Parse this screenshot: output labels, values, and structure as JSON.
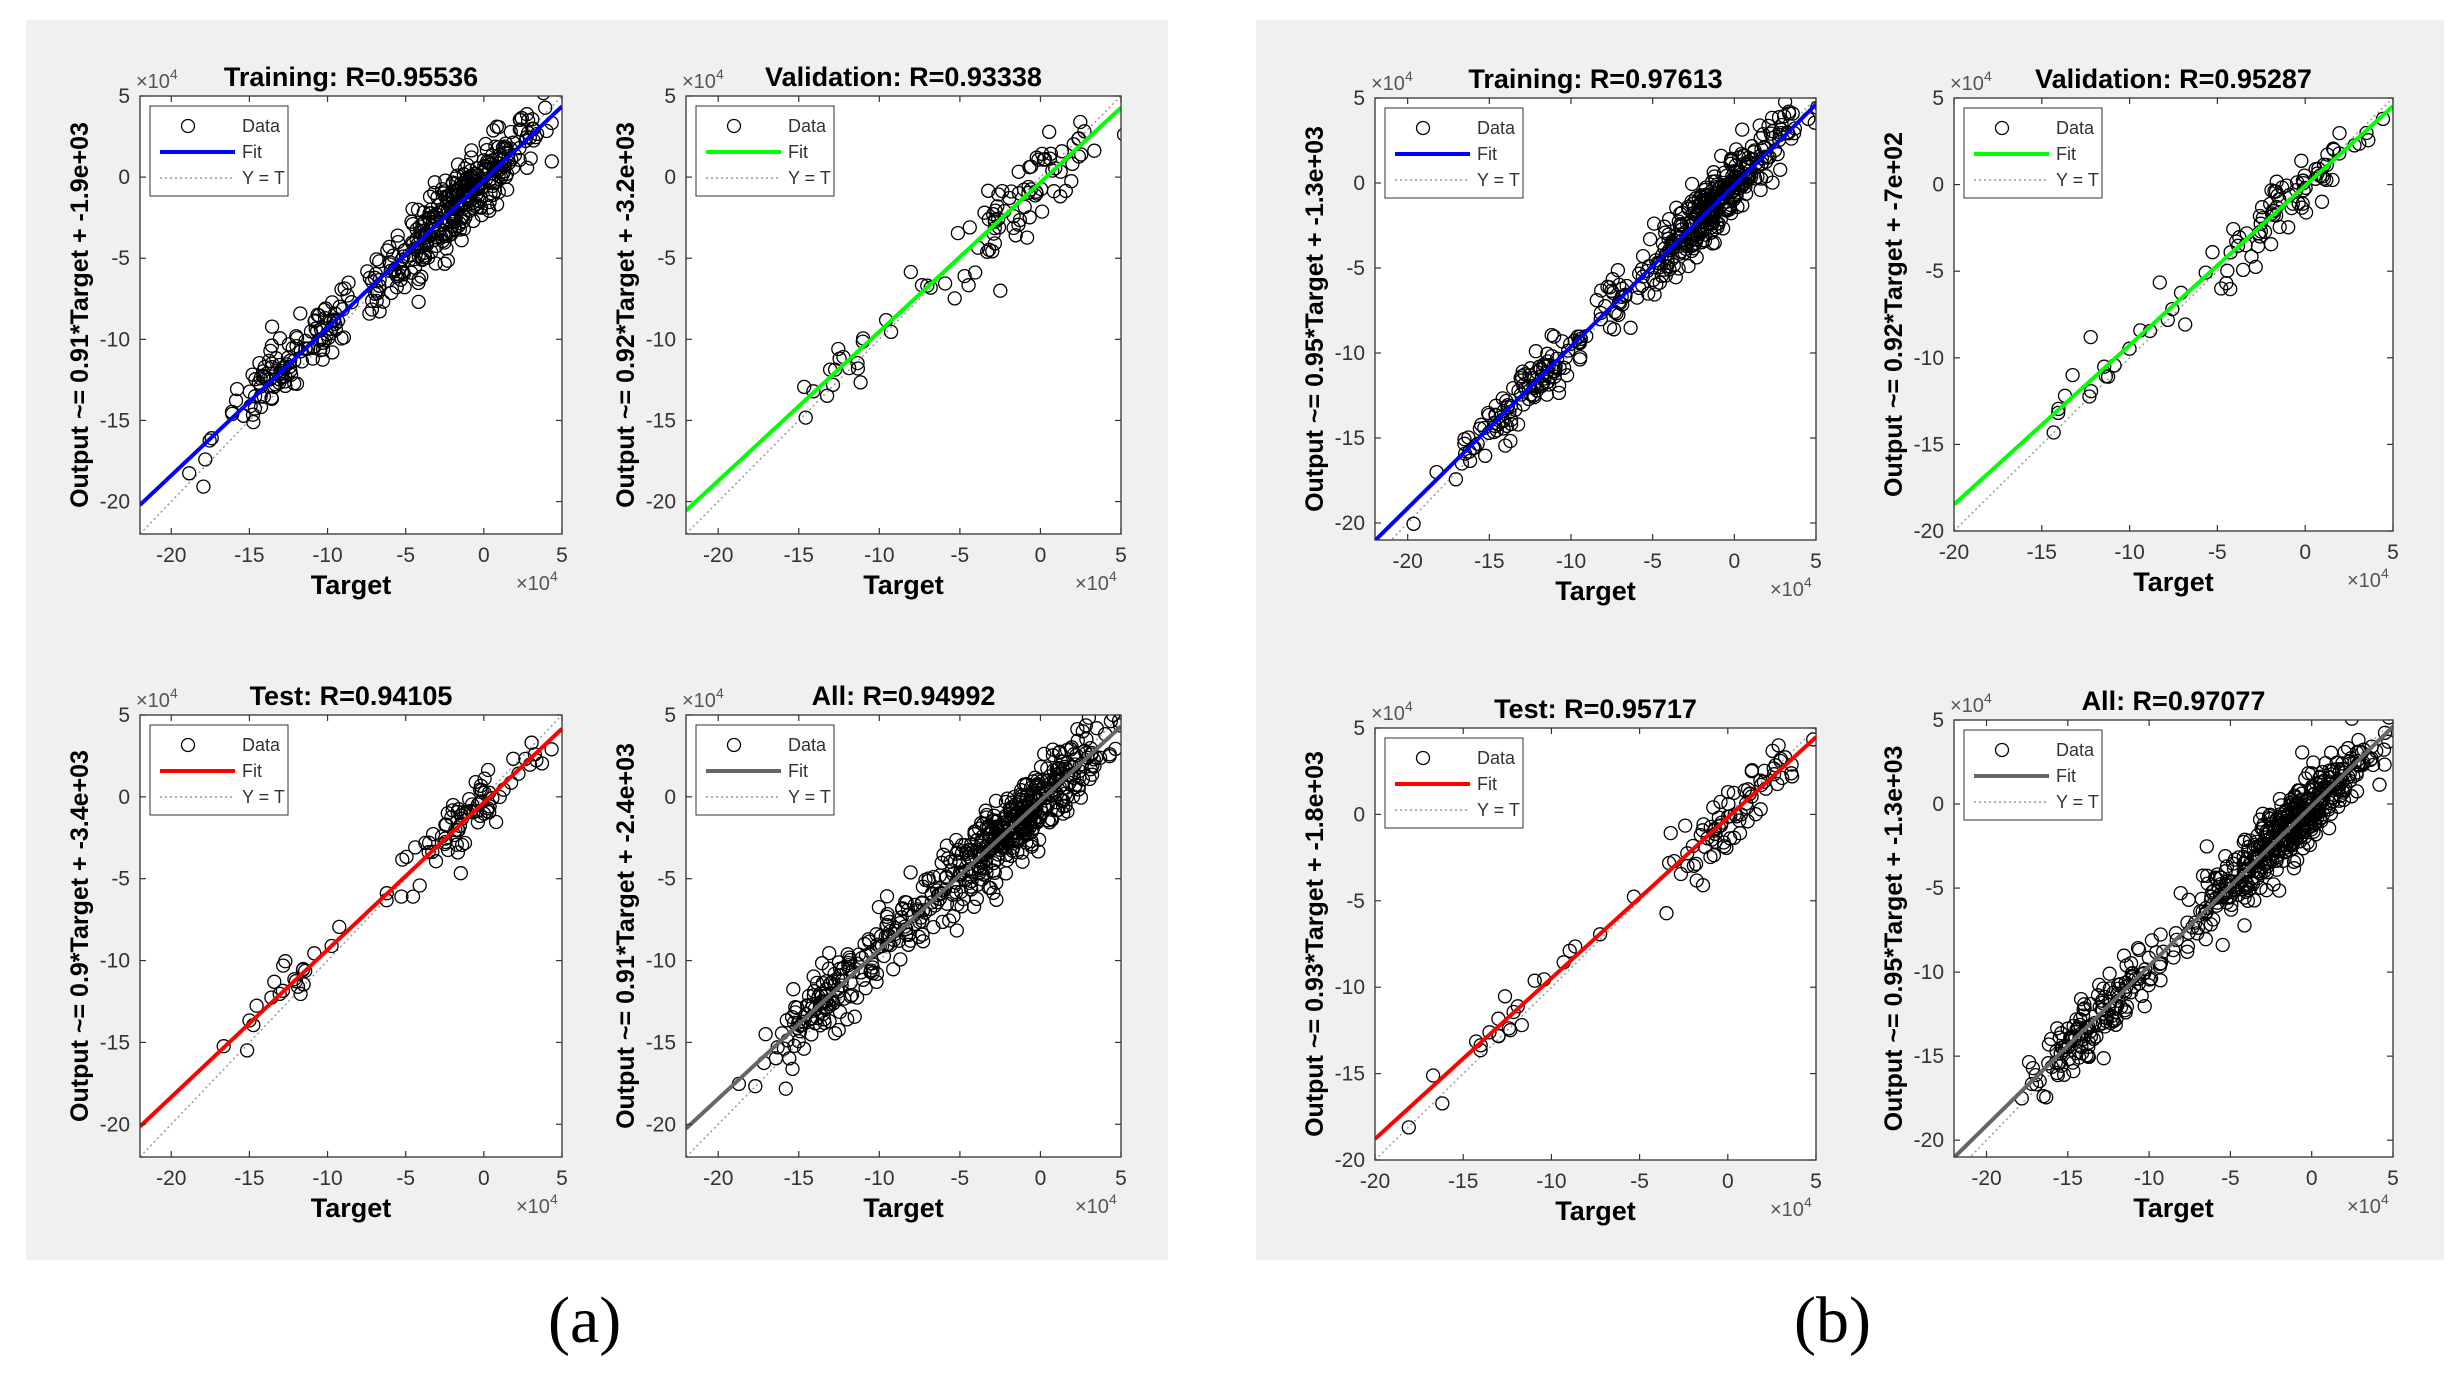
{
  "figure": {
    "captions": [
      "(a)",
      "(b)"
    ],
    "axis_exponent": "×10",
    "axis_exponent_power": "4"
  },
  "chart_data": [
    {
      "id": "a-training",
      "type": "scatter",
      "title": "Training: R=0.95536",
      "ylabel": "Output ~= 0.91*Target + -1.9e+03",
      "xlabel": "Target",
      "xlim": [
        -22,
        5
      ],
      "ylim": [
        -22,
        5
      ],
      "xticks": [
        "-20",
        "-15",
        "-10",
        "-5",
        "0",
        "5"
      ],
      "yticks": [
        "-20",
        "-15",
        "-10",
        "-5",
        "0",
        "5"
      ],
      "fit": {
        "slope": 0.91,
        "intercept": -0.19,
        "color": "#0000ff"
      },
      "legend": [
        "Data",
        "Fit",
        "Y = T"
      ],
      "clusters": [
        {
          "cx": -1.5,
          "cy": -1.5,
          "spread": 2.6,
          "n": 340
        },
        {
          "cx": -12.5,
          "cy": -11.8,
          "spread": 2.4,
          "n": 110
        },
        {
          "cx": -7,
          "cy": -6.5,
          "spread": 2.5,
          "n": 30
        }
      ]
    },
    {
      "id": "a-validation",
      "type": "scatter",
      "title": "Validation: R=0.93338",
      "ylabel": "Output ~= 0.92*Target + -3.2e+03",
      "xlabel": "Target",
      "xlim": [
        -22,
        5
      ],
      "ylim": [
        -22,
        5
      ],
      "xticks": [
        "-20",
        "-15",
        "-10",
        "-5",
        "0",
        "5"
      ],
      "yticks": [
        "-20",
        "-15",
        "-10",
        "-5",
        "0",
        "5"
      ],
      "fit": {
        "slope": 0.92,
        "intercept": -0.32,
        "color": "#00ff00"
      },
      "legend": [
        "Data",
        "Fit",
        "Y = T"
      ],
      "clusters": [
        {
          "cx": -1,
          "cy": -1.5,
          "spread": 2.6,
          "n": 80
        },
        {
          "cx": -12.5,
          "cy": -12,
          "spread": 2.2,
          "n": 20
        }
      ]
    },
    {
      "id": "a-test",
      "type": "scatter",
      "title": "Test: R=0.94105",
      "ylabel": "Output ~= 0.9*Target + -3.4e+03",
      "xlabel": "Target",
      "xlim": [
        -22,
        5
      ],
      "ylim": [
        -22,
        5
      ],
      "xticks": [
        "-20",
        "-15",
        "-10",
        "-5",
        "0",
        "5"
      ],
      "yticks": [
        "-20",
        "-15",
        "-10",
        "-5",
        "0",
        "5"
      ],
      "fit": {
        "slope": 0.9,
        "intercept": -0.34,
        "color": "#ff0000"
      },
      "legend": [
        "Data",
        "Fit",
        "Y = T"
      ],
      "clusters": [
        {
          "cx": -1,
          "cy": -1.5,
          "spread": 2.5,
          "n": 80
        },
        {
          "cx": -12.5,
          "cy": -12,
          "spread": 2.2,
          "n": 22
        }
      ]
    },
    {
      "id": "a-all",
      "type": "scatter",
      "title": "All: R=0.94992",
      "ylabel": "Output ~= 0.91*Target + -2.4e+03",
      "xlabel": "Target",
      "xlim": [
        -22,
        5
      ],
      "ylim": [
        -22,
        5
      ],
      "xticks": [
        "-20",
        "-15",
        "-10",
        "-5",
        "0",
        "5"
      ],
      "yticks": [
        "-20",
        "-15",
        "-10",
        "-5",
        "0",
        "5"
      ],
      "fit": {
        "slope": 0.91,
        "intercept": -0.24,
        "color": "#666666"
      },
      "legend": [
        "Data",
        "Fit",
        "Y = T"
      ],
      "clusters": [
        {
          "cx": -1.5,
          "cy": -1.5,
          "spread": 2.7,
          "n": 420
        },
        {
          "cx": -12.5,
          "cy": -11.8,
          "spread": 2.6,
          "n": 150
        },
        {
          "cx": -7,
          "cy": -6.5,
          "spread": 2.6,
          "n": 40
        }
      ]
    },
    {
      "id": "b-training",
      "type": "scatter",
      "title": "Training: R=0.97613",
      "ylabel": "Output ~= 0.95*Target + -1.3e+03",
      "xlabel": "Target",
      "xlim": [
        -22,
        5
      ],
      "ylim": [
        -21,
        5
      ],
      "xticks": [
        "-20",
        "-15",
        "-10",
        "-5",
        "0",
        "5"
      ],
      "yticks": [
        "-20",
        "-15",
        "-10",
        "-5",
        "0",
        "5"
      ],
      "fit": {
        "slope": 0.95,
        "intercept": -0.13,
        "color": "#0000ff"
      },
      "legend": [
        "Data",
        "Fit",
        "Y = T"
      ],
      "clusters": [
        {
          "cx": -1.5,
          "cy": -1.5,
          "spread": 2.3,
          "n": 340
        },
        {
          "cx": -13,
          "cy": -13,
          "spread": 2.0,
          "n": 110
        },
        {
          "cx": -7,
          "cy": -7,
          "spread": 2.2,
          "n": 30
        }
      ]
    },
    {
      "id": "b-validation",
      "type": "scatter",
      "title": "Validation: R=0.95287",
      "ylabel": "Output ~= 0.92*Target + -7e+02",
      "xlabel": "Target",
      "xlim": [
        -20,
        5
      ],
      "ylim": [
        -20,
        5
      ],
      "xticks": [
        "-20",
        "-15",
        "-10",
        "-5",
        "0",
        "5"
      ],
      "yticks": [
        "-20",
        "-15",
        "-10",
        "-5",
        "0",
        "5"
      ],
      "fit": {
        "slope": 0.92,
        "intercept": -0.07,
        "color": "#00ff00"
      },
      "legend": [
        "Data",
        "Fit",
        "Y = T"
      ],
      "clusters": [
        {
          "cx": -0.5,
          "cy": -0.5,
          "spread": 2.3,
          "n": 80
        },
        {
          "cx": -11,
          "cy": -11,
          "spread": 2.4,
          "n": 22
        }
      ]
    },
    {
      "id": "b-test",
      "type": "scatter",
      "title": "Test: R=0.95717",
      "ylabel": "Output ~= 0.93*Target + -1.8e+03",
      "xlabel": "Target",
      "xlim": [
        -20,
        5
      ],
      "ylim": [
        -20,
        5
      ],
      "xticks": [
        "-20",
        "-15",
        "-10",
        "-5",
        "0",
        "5"
      ],
      "yticks": [
        "-20",
        "-15",
        "-10",
        "-5",
        "0",
        "5"
      ],
      "fit": {
        "slope": 0.93,
        "intercept": -0.18,
        "color": "#ff0000"
      },
      "legend": [
        "Data",
        "Fit",
        "Y = T"
      ],
      "clusters": [
        {
          "cx": 0,
          "cy": -0.5,
          "spread": 2.3,
          "n": 80
        },
        {
          "cx": -12.5,
          "cy": -12.5,
          "spread": 2.0,
          "n": 22
        }
      ]
    },
    {
      "id": "b-all",
      "type": "scatter",
      "title": "All: R=0.97077",
      "ylabel": "Output ~= 0.95*Target + -1.3e+03",
      "xlabel": "Target",
      "xlim": [
        -22,
        5
      ],
      "ylim": [
        -21,
        5
      ],
      "xticks": [
        "-20",
        "-15",
        "-10",
        "-5",
        "0",
        "5"
      ],
      "yticks": [
        "-20",
        "-15",
        "-10",
        "-5",
        "0",
        "5"
      ],
      "fit": {
        "slope": 0.95,
        "intercept": -0.13,
        "color": "#666666"
      },
      "legend": [
        "Data",
        "Fit",
        "Y = T"
      ],
      "clusters": [
        {
          "cx": -1.5,
          "cy": -1.5,
          "spread": 2.5,
          "n": 420
        },
        {
          "cx": -13,
          "cy": -13,
          "spread": 2.2,
          "n": 150
        },
        {
          "cx": -7,
          "cy": -7,
          "spread": 2.4,
          "n": 40
        }
      ]
    }
  ]
}
